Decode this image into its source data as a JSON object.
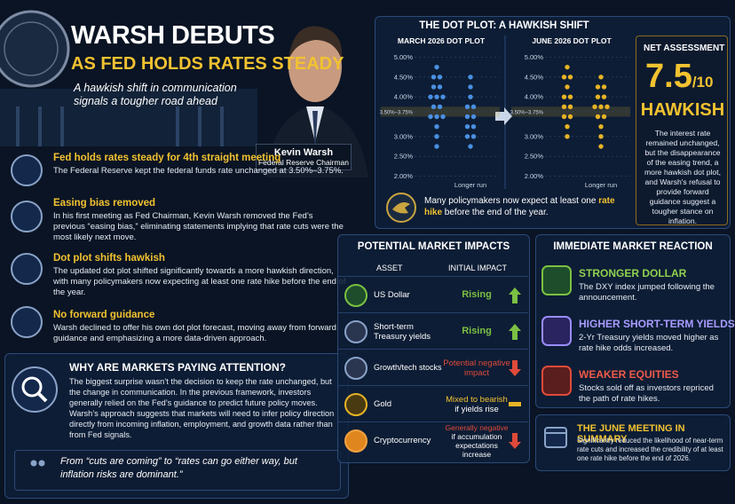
{
  "header": {
    "title_line1": "WARSH DEBUTS",
    "title_line2": "AS FED HOLDS RATES STEADY",
    "subtitle": "A hawkish shift in communication signals a tougher road ahead"
  },
  "person": {
    "name": "Kevin Warsh",
    "role": "Federal Reserve Chairman"
  },
  "key_points": [
    {
      "title": "Fed holds rates steady for 4th straight meeting",
      "body": "The Federal Reserve kept the federal funds rate unchanged at 3.50%–3.75%."
    },
    {
      "title": "Easing bias removed",
      "body": "In his first meeting as Fed Chairman, Kevin Warsh removed the Fed’s previous “easing bias,” eliminating statements implying that rate cuts were the most likely next move."
    },
    {
      "title": "Dot plot shifts hawkish",
      "body": "The updated dot plot shifted significantly towards a more hawkish direction, with many policymakers now expecting at least one rate hike before the end of the year."
    },
    {
      "title": "No forward guidance",
      "body": "Warsh declined to offer his own dot plot forecast, moving away from forward guidance and emphasizing a more data-driven approach."
    }
  ],
  "why": {
    "title": "WHY ARE MARKETS PAYING ATTENTION?",
    "body": "The biggest surprise wasn’t the decision to keep the rate unchanged, but the change in communication. In the previous framework, investors generally relied on the Fed’s guidance to predict future policy moves. Warsh’s approach suggests that markets will need to infer policy direction directly from incoming inflation, employment, and growth data rather than from Fed signals.",
    "quote": "From “cuts are coming” to “rates can go either way, but inflation risks are dominant.”"
  },
  "dot_plot_panel": {
    "title": "THE DOT PLOT: A HAWKISH SHIFT",
    "note_pre": "Many policymakers now expect at least one ",
    "note_em": "rate hike",
    "note_post": " before the end of the year."
  },
  "chart_data": [
    {
      "type": "dot",
      "title": "MARCH 2026 DOT PLOT",
      "categories": [
        null,
        "Longer run"
      ],
      "values": [
        [
          4.75,
          4.5,
          4.5,
          4.25,
          4.25,
          4.0,
          4.0,
          4.0,
          3.75,
          3.75,
          3.5,
          3.5,
          3.5,
          3.25,
          3.0,
          2.75
        ],
        [
          4.5,
          4.25,
          4.0,
          3.75,
          3.75,
          3.5,
          3.5,
          3.25,
          3.25,
          3.0,
          3.0,
          2.75
        ]
      ],
      "color": "#4a90e2",
      "ylim": [
        1.9,
        5.1
      ],
      "yticks": [
        {
          "value": 5.0,
          "label": "5.00%"
        },
        {
          "value": 4.5,
          "label": "4.50%"
        },
        {
          "value": 4.0,
          "label": "4.00%"
        },
        {
          "value": 3.625,
          "label": "3.50%–3.75%"
        },
        {
          "value": 3.0,
          "label": "3.00%"
        },
        {
          "value": 2.5,
          "label": "2.50%"
        },
        {
          "value": 2.0,
          "label": "2.00%"
        }
      ],
      "highlight_band": [
        3.5,
        3.75
      ]
    },
    {
      "type": "dot",
      "title": "JUNE 2026 DOT PLOT",
      "categories": [
        null,
        "Longer run"
      ],
      "values": [
        [
          4.75,
          4.5,
          4.5,
          4.25,
          4.0,
          4.0,
          3.75,
          3.75,
          3.5,
          3.5,
          3.25,
          3.0
        ],
        [
          4.5,
          4.25,
          4.25,
          4.0,
          4.0,
          3.75,
          3.75,
          3.75,
          3.5,
          3.5,
          3.25,
          3.0,
          2.75
        ]
      ],
      "color": "#e6b325",
      "ylim": [
        1.9,
        5.1
      ],
      "yticks": [
        {
          "value": 5.0,
          "label": "5.00%"
        },
        {
          "value": 4.5,
          "label": "4.50%"
        },
        {
          "value": 4.0,
          "label": "4.00%"
        },
        {
          "value": 3.625,
          "label": "3.50%–3.75%"
        },
        {
          "value": 3.0,
          "label": "3.00%"
        },
        {
          "value": 2.5,
          "label": "2.50%"
        },
        {
          "value": 2.0,
          "label": "2.00%"
        }
      ],
      "highlight_band": [
        3.5,
        3.75
      ]
    }
  ],
  "assessment": {
    "title": "NET ASSESSMENT",
    "score": "7.5",
    "scale": "/10",
    "verdict": "HAWKISH",
    "body": "The interest rate remained unchanged, but the disappearance of the easing trend, a more hawkish dot plot, and Warsh's refusal to provide forward guidance suggest a tougher stance on inflation."
  },
  "impacts": {
    "title": "POTENTIAL MARKET IMPACTS",
    "columns": [
      "ASSET",
      "INITIAL IMPACT"
    ],
    "rows": [
      {
        "asset": "US Dollar",
        "impact": "Rising"
      },
      {
        "asset": "Short-term Treasury yields",
        "impact": "Rising"
      },
      {
        "asset": "Growth/tech stocks",
        "impact": "Potential negative impact"
      },
      {
        "asset": "Gold",
        "impact": "Mixed to bearish",
        "note": "if yields rise"
      },
      {
        "asset": "Cryptocurrency",
        "impact": "Generally negative",
        "note": "if accumulation expectations increase"
      }
    ]
  },
  "reaction": {
    "title": "IMMEDIATE MARKET REACTION",
    "items": [
      {
        "title": "STRONGER DOLLAR",
        "body": "The DXY index jumped following the announcement."
      },
      {
        "title": "HIGHER SHORT-TERM YIELDS",
        "body": "2-Yr Treasury yields moved higher as rate hike odds increased."
      },
      {
        "title": "WEAKER EQUITIES",
        "body": "Stocks sold off as investors repriced the path of rate hikes."
      }
    ]
  },
  "summary": {
    "title": "THE JUNE MEETING IN SUMMARY",
    "body": "Significantly reduced the likelihood of near-term rate cuts and increased the credibility of at least one rate hike before the end of 2026."
  }
}
